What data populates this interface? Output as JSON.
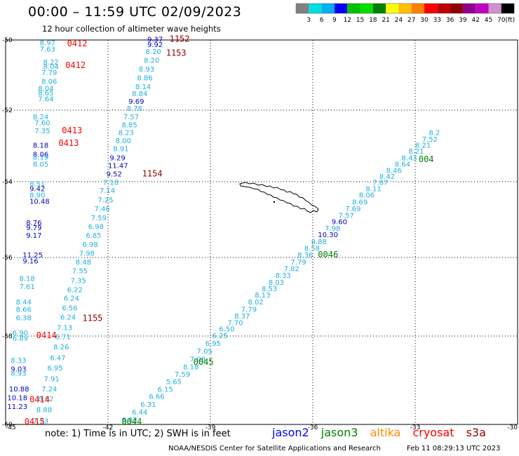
{
  "title": "00:00 – 11:59 UTC 02/09/2023",
  "subtitle": "12 hour collection of altimeter wave heights",
  "color_scale": {
    "colors": [
      "#808080",
      "#00e0e0",
      "#00b0f0",
      "#0000ff",
      "#00c000",
      "#00e000",
      "#008000",
      "#ffff00",
      "#ffc000",
      "#ff8000",
      "#ff0000",
      "#c00000",
      "#900000",
      "#900090",
      "#c000c0",
      "#d090d0",
      "#000000"
    ],
    "ticks": [
      "3",
      "6",
      "9",
      "12",
      "15",
      "18",
      "21",
      "24",
      "27",
      "30",
      "33",
      "36",
      "39",
      "42",
      "45",
      "70"
    ],
    "unit": "(ft)"
  },
  "axes": {
    "lat_labels": [
      "-50",
      "-52",
      "-54",
      "-56",
      "-58",
      "-60"
    ],
    "lon_labels": [
      "-45",
      "-42",
      "-39",
      "-36",
      "-33",
      "-30"
    ]
  },
  "track_colors": {
    "swh_light": "#1fb0e0",
    "swh_mid": "#00aaf0",
    "swh_dark": "#0000c0",
    "time_red": "#ff0000",
    "time_maroon": "#900000",
    "time_green": "#008000"
  },
  "swh_points": [
    {
      "lon": -44.0,
      "lat": -50.15,
      "v": "8.97",
      "c": "swh_light"
    },
    {
      "lon": -44.0,
      "lat": -50.33,
      "v": "7.63",
      "c": "swh_light"
    },
    {
      "lon": -43.9,
      "lat": -50.7,
      "v": "8.22",
      "c": "swh_light"
    },
    {
      "lon": -43.9,
      "lat": -50.83,
      "v": "8.04",
      "c": "swh_light"
    },
    {
      "lon": -43.95,
      "lat": -51.0,
      "v": "7.79",
      "c": "swh_light"
    },
    {
      "lon": -43.95,
      "lat": -51.25,
      "v": "8.06",
      "c": "swh_light"
    },
    {
      "lon": -44.05,
      "lat": -51.45,
      "v": "8.04",
      "c": "swh_light"
    },
    {
      "lon": -44.05,
      "lat": -51.58,
      "v": "8.65",
      "c": "swh_light"
    },
    {
      "lon": -44.05,
      "lat": -51.75,
      "v": "7.64",
      "c": "swh_light"
    },
    {
      "lon": -44.2,
      "lat": -52.25,
      "v": "8.24",
      "c": "swh_light"
    },
    {
      "lon": -44.15,
      "lat": -52.42,
      "v": "7.60",
      "c": "swh_light"
    },
    {
      "lon": -44.15,
      "lat": -52.65,
      "v": "7.35",
      "c": "swh_light"
    },
    {
      "lon": -44.2,
      "lat": -53.05,
      "v": "8.18",
      "c": "swh_dark"
    },
    {
      "lon": -44.2,
      "lat": -53.3,
      "v": "8.06",
      "c": "swh_dark"
    },
    {
      "lon": -44.2,
      "lat": -53.38,
      "v": "8.19",
      "c": "swh_light"
    },
    {
      "lon": -44.2,
      "lat": -53.58,
      "v": "8.05",
      "c": "swh_light"
    },
    {
      "lon": -44.3,
      "lat": -54.12,
      "v": "8.51",
      "c": "swh_light"
    },
    {
      "lon": -44.3,
      "lat": -54.25,
      "v": "9.42",
      "c": "swh_dark"
    },
    {
      "lon": -44.3,
      "lat": -54.42,
      "v": "8.90",
      "c": "swh_light"
    },
    {
      "lon": -44.3,
      "lat": -54.58,
      "v": "10.48",
      "c": "swh_dark"
    },
    {
      "lon": -44.4,
      "lat": -55.15,
      "v": "8.76",
      "c": "swh_dark"
    },
    {
      "lon": -44.4,
      "lat": -55.28,
      "v": "9.79",
      "c": "swh_dark"
    },
    {
      "lon": -44.4,
      "lat": -55.48,
      "v": "9.17",
      "c": "swh_dark"
    },
    {
      "lon": -44.5,
      "lat": -56.0,
      "v": "11.25",
      "c": "swh_dark"
    },
    {
      "lon": -44.5,
      "lat": -56.15,
      "v": "9.16",
      "c": "swh_dark"
    },
    {
      "lon": -44.6,
      "lat": -56.6,
      "v": "8.18",
      "c": "swh_light"
    },
    {
      "lon": -44.6,
      "lat": -56.8,
      "v": "7.61",
      "c": "swh_light"
    },
    {
      "lon": -44.7,
      "lat": -57.2,
      "v": "8.44",
      "c": "swh_light"
    },
    {
      "lon": -44.7,
      "lat": -57.38,
      "v": "8.66",
      "c": "swh_light"
    },
    {
      "lon": -44.7,
      "lat": -57.6,
      "v": "6.38",
      "c": "swh_light"
    },
    {
      "lon": -44.8,
      "lat": -57.98,
      "v": "6.90",
      "c": "swh_light"
    },
    {
      "lon": -44.8,
      "lat": -58.1,
      "v": "6.89",
      "c": "swh_light"
    },
    {
      "lon": -44.85,
      "lat": -58.6,
      "v": "8.33",
      "c": "swh_light"
    },
    {
      "lon": -44.85,
      "lat": -58.8,
      "v": "9.03",
      "c": "swh_dark"
    },
    {
      "lon": -44.85,
      "lat": -58.9,
      "v": "8.93",
      "c": "swh_light"
    },
    {
      "lon": -44.9,
      "lat": -59.25,
      "v": "10.88",
      "c": "swh_dark"
    },
    {
      "lon": -44.95,
      "lat": -59.45,
      "v": "10.18",
      "c": "swh_dark"
    },
    {
      "lon": -44.95,
      "lat": -59.65,
      "v": "11.23",
      "c": "swh_dark"
    },
    {
      "lon": -44.65,
      "lat": -60.0,
      "v": "8.92",
      "c": "swh_light"
    },
    {
      "lon": -40.85,
      "lat": -50.05,
      "v": "9.37",
      "c": "swh_dark"
    },
    {
      "lon": -40.85,
      "lat": -50.2,
      "v": "9.92",
      "c": "swh_dark"
    },
    {
      "lon": -40.9,
      "lat": -50.4,
      "v": "8.20",
      "c": "swh_light"
    },
    {
      "lon": -40.95,
      "lat": -50.65,
      "v": "8.20",
      "c": "swh_light"
    },
    {
      "lon": -41.1,
      "lat": -50.9,
      "v": "8.93",
      "c": "swh_light"
    },
    {
      "lon": -41.15,
      "lat": -51.15,
      "v": "8.86",
      "c": "swh_light"
    },
    {
      "lon": -41.2,
      "lat": -51.4,
      "v": "8.14",
      "c": "swh_light"
    },
    {
      "lon": -41.3,
      "lat": -51.6,
      "v": "8.84",
      "c": "swh_light"
    },
    {
      "lon": -41.4,
      "lat": -51.82,
      "v": "9.69",
      "c": "swh_dark"
    },
    {
      "lon": -41.45,
      "lat": -52.02,
      "v": "8.78",
      "c": "swh_light"
    },
    {
      "lon": -41.55,
      "lat": -52.25,
      "v": "7.57",
      "c": "swh_light"
    },
    {
      "lon": -41.6,
      "lat": -52.48,
      "v": "8.85",
      "c": "swh_light"
    },
    {
      "lon": -41.7,
      "lat": -52.7,
      "v": "8.23",
      "c": "swh_light"
    },
    {
      "lon": -41.78,
      "lat": -52.92,
      "v": "8.00",
      "c": "swh_light"
    },
    {
      "lon": -41.85,
      "lat": -53.15,
      "v": "8.91",
      "c": "swh_light"
    },
    {
      "lon": -41.95,
      "lat": -53.4,
      "v": "9.29",
      "c": "swh_dark"
    },
    {
      "lon": -42.0,
      "lat": -53.62,
      "v": "11.47",
      "c": "swh_dark"
    },
    {
      "lon": -42.05,
      "lat": -53.85,
      "v": "9.52",
      "c": "swh_dark"
    },
    {
      "lon": -42.15,
      "lat": -54.08,
      "v": "7.18",
      "c": "swh_light"
    },
    {
      "lon": -42.25,
      "lat": -54.3,
      "v": "7.14",
      "c": "swh_light"
    },
    {
      "lon": -42.3,
      "lat": -54.55,
      "v": "7.25",
      "c": "swh_light"
    },
    {
      "lon": -42.4,
      "lat": -54.78,
      "v": "7.46",
      "c": "swh_light"
    },
    {
      "lon": -42.5,
      "lat": -55.02,
      "v": "7.59",
      "c": "swh_light"
    },
    {
      "lon": -42.58,
      "lat": -55.25,
      "v": "6.98",
      "c": "swh_light"
    },
    {
      "lon": -42.65,
      "lat": -55.48,
      "v": "6.85",
      "c": "swh_light"
    },
    {
      "lon": -42.75,
      "lat": -55.72,
      "v": "6.98",
      "c": "swh_light"
    },
    {
      "lon": -42.85,
      "lat": -55.95,
      "v": "7.98",
      "c": "swh_light"
    },
    {
      "lon": -42.95,
      "lat": -56.18,
      "v": "8.48",
      "c": "swh_light"
    },
    {
      "lon": -43.05,
      "lat": -56.4,
      "v": "7.55",
      "c": "swh_light"
    },
    {
      "lon": -43.1,
      "lat": -56.65,
      "v": "7.35",
      "c": "swh_light"
    },
    {
      "lon": -43.2,
      "lat": -56.88,
      "v": "6.22",
      "c": "swh_light"
    },
    {
      "lon": -43.3,
      "lat": -57.1,
      "v": "6.24",
      "c": "swh_light"
    },
    {
      "lon": -43.35,
      "lat": -57.35,
      "v": "6.56",
      "c": "swh_light"
    },
    {
      "lon": -43.4,
      "lat": -57.58,
      "v": "6.24",
      "c": "swh_light"
    },
    {
      "lon": -43.5,
      "lat": -57.85,
      "v": "7.13",
      "c": "swh_light"
    },
    {
      "lon": -43.55,
      "lat": -58.07,
      "v": "6.71",
      "c": "swh_light"
    },
    {
      "lon": -43.6,
      "lat": -58.3,
      "v": "8.26",
      "c": "swh_light"
    },
    {
      "lon": -43.7,
      "lat": -58.55,
      "v": "6.47",
      "c": "swh_light"
    },
    {
      "lon": -43.78,
      "lat": -58.78,
      "v": "6.95",
      "c": "swh_light"
    },
    {
      "lon": -43.88,
      "lat": -59.02,
      "v": "7.91",
      "c": "swh_light"
    },
    {
      "lon": -43.95,
      "lat": -59.25,
      "v": "7.24",
      "c": "swh_light"
    },
    {
      "lon": -44.05,
      "lat": -59.48,
      "v": "8.82",
      "c": "swh_light"
    },
    {
      "lon": -44.1,
      "lat": -59.72,
      "v": "8.88",
      "c": "swh_light"
    },
    {
      "lon": -44.2,
      "lat": -59.98,
      "v": "7.23",
      "c": "swh_light"
    },
    {
      "lon": -44.25,
      "lat": -60.22,
      "v": "7.70",
      "c": "swh_light"
    },
    {
      "lon": -42.1,
      "lat": -60.28,
      "v": "5.98",
      "c": "swh_light"
    },
    {
      "lon": -41.8,
      "lat": -60.12,
      "v": "6.40",
      "c": "swh_light"
    },
    {
      "lon": -41.6,
      "lat": -59.95,
      "v": "6.83",
      "c": "swh_light"
    },
    {
      "lon": -41.3,
      "lat": -59.78,
      "v": "6.44",
      "c": "swh_light"
    },
    {
      "lon": -41.05,
      "lat": -59.6,
      "v": "6.31",
      "c": "swh_light"
    },
    {
      "lon": -40.8,
      "lat": -59.42,
      "v": "6.66",
      "c": "swh_light"
    },
    {
      "lon": -40.55,
      "lat": -59.26,
      "v": "6.15",
      "c": "swh_light"
    },
    {
      "lon": -40.3,
      "lat": -59.09,
      "v": "5.65",
      "c": "swh_light"
    },
    {
      "lon": -40.05,
      "lat": -58.92,
      "v": "7.59",
      "c": "swh_light"
    },
    {
      "lon": -39.8,
      "lat": -58.75,
      "v": "8.18",
      "c": "swh_light"
    },
    {
      "lon": -39.6,
      "lat": -58.58,
      "v": "7.08",
      "c": "swh_light"
    },
    {
      "lon": -39.4,
      "lat": -58.4,
      "v": "7.05",
      "c": "swh_light"
    },
    {
      "lon": -39.15,
      "lat": -58.22,
      "v": "6.95",
      "c": "swh_light"
    },
    {
      "lon": -38.95,
      "lat": -58.05,
      "v": "6.25",
      "c": "swh_light"
    },
    {
      "lon": -38.75,
      "lat": -57.88,
      "v": "6.50",
      "c": "swh_light"
    },
    {
      "lon": -38.5,
      "lat": -57.72,
      "v": "7.70",
      "c": "swh_light"
    },
    {
      "lon": -38.3,
      "lat": -57.55,
      "v": "8.37",
      "c": "swh_light"
    },
    {
      "lon": -38.1,
      "lat": -57.38,
      "v": "7.79",
      "c": "swh_light"
    },
    {
      "lon": -37.9,
      "lat": -57.2,
      "v": "8.02",
      "c": "swh_light"
    },
    {
      "lon": -37.7,
      "lat": -57.02,
      "v": "8.13",
      "c": "swh_light"
    },
    {
      "lon": -37.5,
      "lat": -56.86,
      "v": "8.53",
      "c": "swh_light"
    },
    {
      "lon": -37.3,
      "lat": -56.7,
      "v": "8.03",
      "c": "swh_light"
    },
    {
      "lon": -37.1,
      "lat": -56.52,
      "v": "8.33",
      "c": "swh_light"
    },
    {
      "lon": -36.85,
      "lat": -56.35,
      "v": "7.82",
      "c": "swh_light"
    },
    {
      "lon": -36.65,
      "lat": -56.18,
      "v": "7.79",
      "c": "swh_light"
    },
    {
      "lon": -36.45,
      "lat": -56.0,
      "v": "8.36",
      "c": "swh_light"
    },
    {
      "lon": -36.25,
      "lat": -55.82,
      "v": "8.58",
      "c": "swh_light"
    },
    {
      "lon": -36.05,
      "lat": -55.65,
      "v": "8.88",
      "c": "swh_light"
    },
    {
      "lon": -35.85,
      "lat": -55.46,
      "v": "10.30",
      "c": "swh_dark"
    },
    {
      "lon": -35.65,
      "lat": -55.3,
      "v": "7.98",
      "c": "swh_light"
    },
    {
      "lon": -35.45,
      "lat": -55.12,
      "v": "9.60",
      "c": "swh_dark"
    },
    {
      "lon": -35.25,
      "lat": -54.95,
      "v": "7.57",
      "c": "swh_light"
    },
    {
      "lon": -35.05,
      "lat": -54.78,
      "v": "7.69",
      "c": "swh_light"
    },
    {
      "lon": -34.85,
      "lat": -54.6,
      "v": "8.69",
      "c": "swh_light"
    },
    {
      "lon": -34.65,
      "lat": -54.42,
      "v": "8.06",
      "c": "swh_light"
    },
    {
      "lon": -34.45,
      "lat": -54.25,
      "v": "8.11",
      "c": "swh_light"
    },
    {
      "lon": -34.25,
      "lat": -54.08,
      "v": "7.87",
      "c": "swh_light"
    },
    {
      "lon": -34.05,
      "lat": -53.92,
      "v": "8.42",
      "c": "swh_light"
    },
    {
      "lon": -33.85,
      "lat": -53.75,
      "v": "8.46",
      "c": "swh_light"
    },
    {
      "lon": -33.6,
      "lat": -53.58,
      "v": "8.64",
      "c": "swh_light"
    },
    {
      "lon": -33.4,
      "lat": -53.4,
      "v": "8.43",
      "c": "swh_light"
    },
    {
      "lon": -33.2,
      "lat": -53.22,
      "v": "8.21",
      "c": "swh_light"
    },
    {
      "lon": -33.0,
      "lat": -53.05,
      "v": "8.21",
      "c": "swh_light"
    },
    {
      "lon": -32.8,
      "lat": -52.88,
      "v": "7.52",
      "c": "swh_light"
    },
    {
      "lon": -32.6,
      "lat": -52.7,
      "v": "8.2",
      "c": "swh_light"
    }
  ],
  "time_labels": [
    {
      "lon": -43.2,
      "lat": -50.18,
      "t": "0412",
      "c": "time_red"
    },
    {
      "lon": -43.25,
      "lat": -50.8,
      "t": "0412",
      "c": "time_red"
    },
    {
      "lon": -43.35,
      "lat": -52.65,
      "t": "0413",
      "c": "time_red"
    },
    {
      "lon": -43.45,
      "lat": -53.0,
      "t": "0413",
      "c": "time_red"
    },
    {
      "lon": -44.1,
      "lat": -58.05,
      "t": "0414",
      "c": "time_red"
    },
    {
      "lon": -44.3,
      "lat": -59.5,
      "t": "0414",
      "c": "time_red"
    },
    {
      "lon": -44.45,
      "lat": -60.2,
      "t": "0415",
      "c": "time_red"
    },
    {
      "lon": -40.2,
      "lat": -50.05,
      "t": "1152",
      "c": "time_maroon"
    },
    {
      "lon": -40.3,
      "lat": -50.45,
      "t": "1153",
      "c": "time_maroon"
    },
    {
      "lon": -41.0,
      "lat": -53.85,
      "t": "1154",
      "c": "time_maroon"
    },
    {
      "lon": -42.75,
      "lat": -57.62,
      "t": "1155",
      "c": "time_maroon"
    },
    {
      "lon": -41.6,
      "lat": -60.25,
      "t": "0044",
      "c": "time_green"
    },
    {
      "lon": -39.5,
      "lat": -58.65,
      "t": "0045",
      "c": "time_green"
    },
    {
      "lon": -35.85,
      "lat": -56.0,
      "t": "0046",
      "c": "time_green"
    },
    {
      "lon": -32.9,
      "lat": -53.45,
      "t": "004",
      "c": "time_green"
    }
  ],
  "note": "note:  1) Time is in UTC;  2) SWH is in feet",
  "legend": [
    {
      "label": "jason2",
      "color": "#0000ff"
    },
    {
      "label": "jason3",
      "color": "#008000"
    },
    {
      "label": "altika",
      "color": "#ff8c00"
    },
    {
      "label": "cryosat",
      "color": "#ff0000"
    },
    {
      "label": "s3a",
      "color": "#900000"
    }
  ],
  "credit": "NOAA/NESDIS Center for Satellite Applications and Research",
  "timestamp": "Feb 11 08:29:13 UTC 2023"
}
